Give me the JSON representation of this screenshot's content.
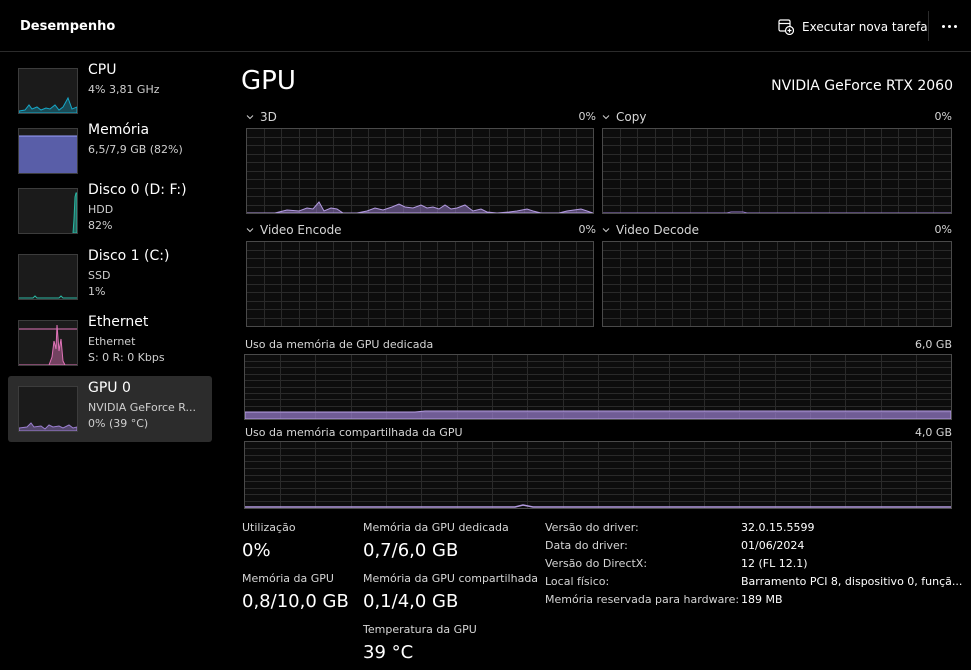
{
  "titlebar": {
    "title": "Desempenho",
    "new_task_label": "Executar nova tarefa",
    "more_icon": "more-horizontal-icon"
  },
  "sidebar": {
    "items": [
      {
        "name": "CPU",
        "line1": "4% 3,81 GHz",
        "line2": "",
        "color": "#17a7c7"
      },
      {
        "name": "Memória",
        "line1": "6,5/7,9 GB (82%)",
        "line2": "",
        "color": "#6f76d8"
      },
      {
        "name": "Disco 0 (D: F:)",
        "line1": "HDD",
        "line2": "82%",
        "color": "#2bb7a3"
      },
      {
        "name": "Disco 1 (C:)",
        "line1": "SSD",
        "line2": "1%",
        "color": "#2bb7a3"
      },
      {
        "name": "Ethernet",
        "line1": "Ethernet",
        "line2": "S: 0 R: 0 Kbps",
        "color": "#e074b8"
      },
      {
        "name": "GPU 0",
        "line1": "NVIDIA GeForce R...",
        "line2": "0% (39 °C)",
        "color": "#9b7fd0"
      }
    ],
    "selected_index": 5
  },
  "gpu": {
    "title": "GPU",
    "model": "NVIDIA GeForce RTX 2060",
    "accent": "#9b7fd0",
    "engines": [
      {
        "name": "3D",
        "value": "0%"
      },
      {
        "name": "Copy",
        "value": "0%"
      },
      {
        "name": "Video Encode",
        "value": "0%"
      },
      {
        "name": "Video Decode",
        "value": "0%"
      }
    ],
    "dedicated_graph": {
      "label": "Uso da memória de GPU dedicada",
      "max": "6,0 GB"
    },
    "shared_graph": {
      "label": "Uso da memória compartilhada da GPU",
      "max": "4,0 GB"
    }
  },
  "stats": {
    "utilization": {
      "label": "Utilização",
      "value": "0%"
    },
    "gpu_memory": {
      "label": "Memória da GPU",
      "value": "0,8/10,0 GB"
    },
    "dedicated": {
      "label": "Memória da GPU dedicada",
      "value": "0,7/6,0 GB"
    },
    "shared": {
      "label": "Memória da GPU compartilhada",
      "value": "0,1/4,0 GB"
    },
    "temperature": {
      "label": "Temperatura da GPU",
      "value": "39 °C"
    }
  },
  "info": [
    {
      "key": "Versão do driver:",
      "value": "32.0.15.5599"
    },
    {
      "key": "Data do driver:",
      "value": "01/06/2024"
    },
    {
      "key": "Versão do DirectX:",
      "value": "12 (FL 12.1)"
    },
    {
      "key": "Local físico:",
      "value": "Barramento PCI 8, dispositivo 0, funçã..."
    },
    {
      "key": "Memória reservada para hardware:",
      "value": "189 MB"
    }
  ]
}
